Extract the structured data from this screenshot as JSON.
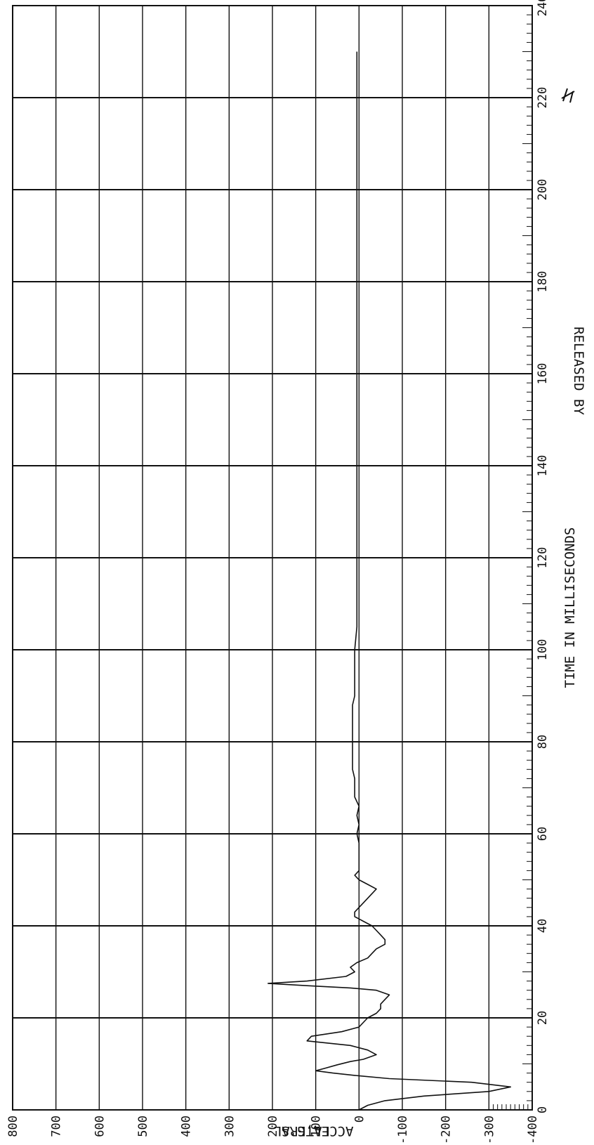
{
  "chart_data": {
    "type": "line",
    "orientation": "rotated-90-counterclockwise",
    "title": "",
    "xlabel": "TIME IN MILLISECONDS",
    "ylabel_lines": [
      "LATERAL",
      "ACCEL,G'S"
    ],
    "xlim": [
      0,
      240
    ],
    "ylim": [
      -400,
      800
    ],
    "x_ticks": [
      "0",
      "20",
      "40",
      "60",
      "80",
      "100",
      "120",
      "140",
      "160",
      "180",
      "200",
      "220",
      "240"
    ],
    "y_ticks": [
      "800",
      "700",
      "600",
      "500",
      "400",
      "300",
      "200",
      "100",
      "0",
      "-100",
      "-200",
      "-300",
      "-400"
    ],
    "grid": true,
    "footer_text": "RELEASED BY",
    "signature": "initials",
    "series": [
      {
        "x": [
          0,
          1,
          2,
          3,
          4,
          5,
          6,
          6.8,
          7.5,
          8,
          8.5,
          9,
          9.8,
          10.5,
          11,
          12,
          13,
          14,
          15,
          16,
          17,
          18,
          19,
          20,
          21,
          22,
          23,
          24,
          25,
          26,
          26.5,
          27,
          27.5,
          28,
          29,
          30,
          31,
          32,
          33,
          34,
          35,
          36,
          37,
          38,
          39,
          40,
          41,
          42,
          43,
          44,
          45,
          46,
          47,
          48,
          49,
          50,
          51,
          52,
          53,
          54,
          56,
          58,
          60,
          62,
          64,
          66,
          68,
          70,
          72,
          74,
          76,
          78,
          80,
          82,
          84,
          86,
          88,
          90,
          95,
          100,
          105,
          110,
          115,
          120,
          125,
          130,
          135,
          140,
          145,
          150,
          155,
          160,
          165,
          170,
          175,
          180,
          185,
          190,
          195,
          200,
          205,
          210,
          215,
          220,
          225,
          230
        ],
        "y": [
          0,
          -20,
          -60,
          -150,
          -300,
          -350,
          -260,
          -70,
          10,
          60,
          100,
          80,
          50,
          20,
          -10,
          -40,
          -20,
          20,
          120,
          110,
          40,
          0,
          -10,
          -20,
          -40,
          -50,
          -50,
          -60,
          -70,
          -40,
          20,
          120,
          210,
          120,
          30,
          10,
          20,
          5,
          -20,
          -30,
          -40,
          -60,
          -60,
          -50,
          -40,
          -30,
          -10,
          10,
          10,
          0,
          -10,
          -20,
          -30,
          -40,
          -20,
          0,
          10,
          0,
          0,
          0,
          0,
          0,
          5,
          0,
          5,
          0,
          10,
          10,
          10,
          15,
          15,
          15,
          15,
          15,
          15,
          15,
          15,
          10,
          10,
          10,
          5,
          5,
          5,
          5,
          5,
          5,
          5,
          5,
          5,
          5,
          5,
          5,
          5,
          5,
          5,
          5,
          5,
          5,
          5,
          5,
          5,
          5,
          5,
          5,
          5,
          5
        ]
      }
    ]
  }
}
